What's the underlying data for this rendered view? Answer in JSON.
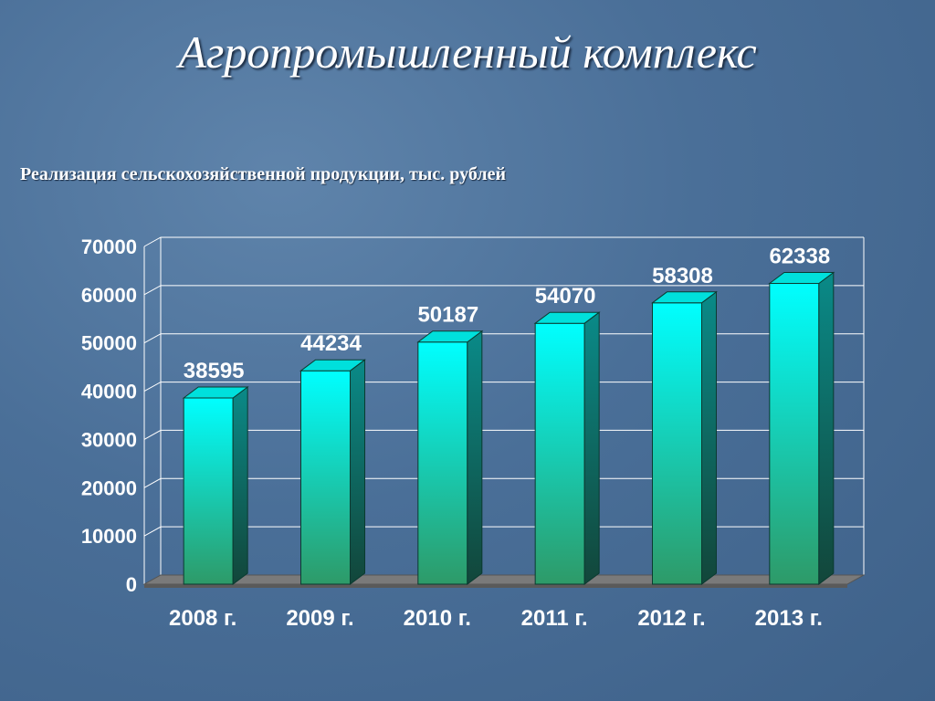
{
  "slide": {
    "title": "Агропромышленный комплекс",
    "subtitle": "Реализация сельскохозяйственной продукции, тыс. рублей"
  },
  "chart_data": {
    "type": "bar",
    "categories": [
      "2008 г.",
      "2009 г.",
      "2010 г.",
      "2011 г.",
      "2012 г.",
      "2013 г."
    ],
    "values": [
      38595,
      44234,
      50187,
      54070,
      58308,
      62338
    ],
    "data_labels": [
      "38595",
      "44234",
      "50187",
      "54070",
      "58308",
      "62338"
    ],
    "yticks": [
      "0",
      "10000",
      "20000",
      "30000",
      "40000",
      "50000",
      "60000",
      "70000"
    ],
    "ylim": [
      0,
      70000
    ],
    "grid": true,
    "legend": "none",
    "colors": {
      "bar_top": "#00ffff",
      "bar_bottom": "#2e9a68",
      "bar_side": "#0b5a52",
      "floor": "#7a7a7a",
      "grid": "#ffffff"
    }
  }
}
